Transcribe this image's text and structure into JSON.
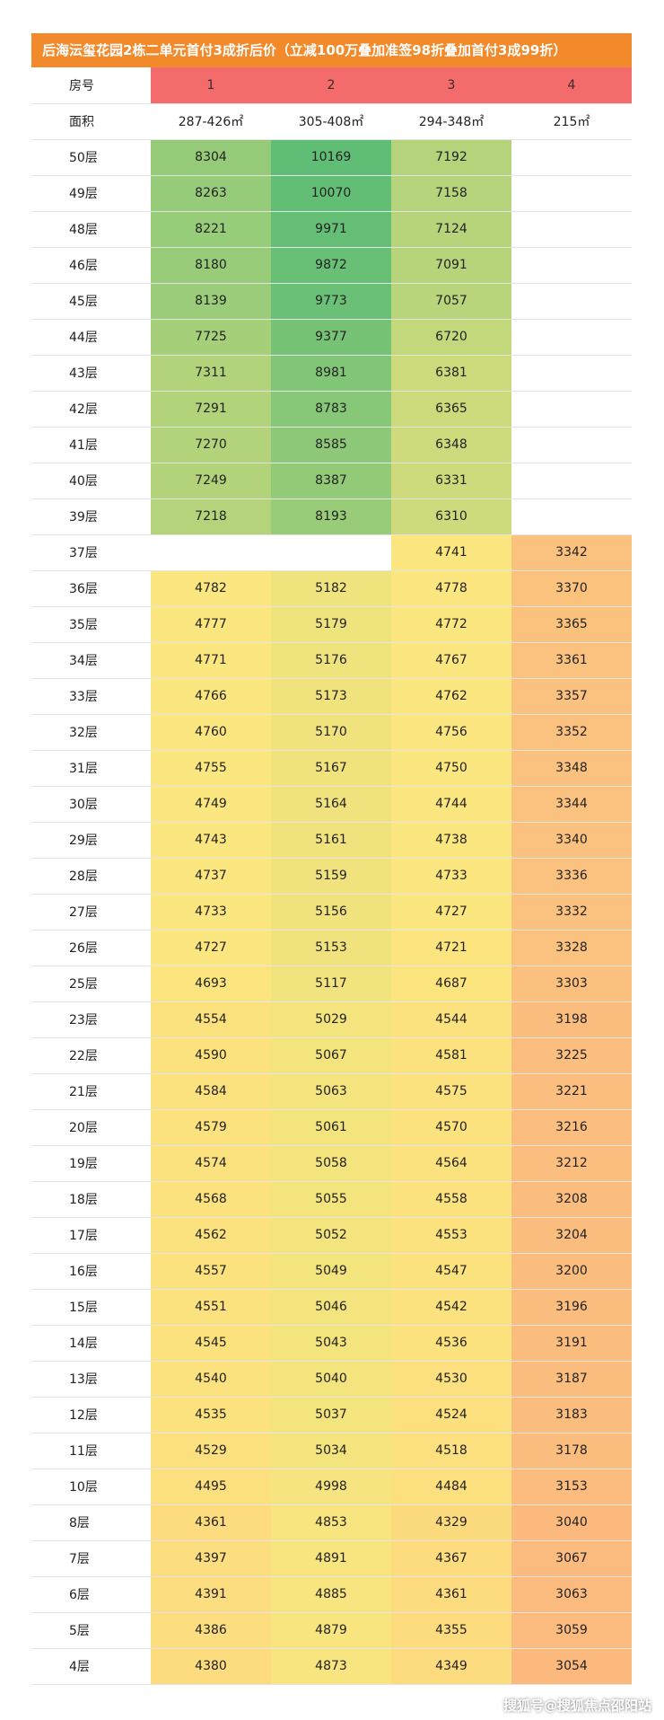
{
  "title": "后海沄玺花园2栋二单元首付3成折后价（立减100万叠加准签98折叠加首付3成99折）",
  "header": {
    "label": "房号",
    "units": [
      "1",
      "2",
      "3",
      "4"
    ]
  },
  "area": {
    "label": "面积",
    "values": [
      "287-426㎡",
      "305-408㎡",
      "294-348㎡",
      "215㎡"
    ]
  },
  "rows": [
    {
      "floor": "50层",
      "prices": [
        "8304",
        "10169",
        "7192",
        ""
      ]
    },
    {
      "floor": "49层",
      "prices": [
        "8263",
        "10070",
        "7158",
        ""
      ]
    },
    {
      "floor": "48层",
      "prices": [
        "8221",
        "9971",
        "7124",
        ""
      ]
    },
    {
      "floor": "46层",
      "prices": [
        "8180",
        "9872",
        "7091",
        ""
      ]
    },
    {
      "floor": "45层",
      "prices": [
        "8139",
        "9773",
        "7057",
        ""
      ]
    },
    {
      "floor": "44层",
      "prices": [
        "7725",
        "9377",
        "6720",
        ""
      ]
    },
    {
      "floor": "43层",
      "prices": [
        "7311",
        "8981",
        "6381",
        ""
      ]
    },
    {
      "floor": "42层",
      "prices": [
        "7291",
        "8783",
        "6365",
        ""
      ]
    },
    {
      "floor": "41层",
      "prices": [
        "7270",
        "8585",
        "6348",
        ""
      ]
    },
    {
      "floor": "40层",
      "prices": [
        "7249",
        "8387",
        "6331",
        ""
      ]
    },
    {
      "floor": "39层",
      "prices": [
        "7218",
        "8193",
        "6310",
        ""
      ]
    },
    {
      "floor": "37层",
      "prices": [
        "",
        "",
        "4741",
        "3342"
      ]
    },
    {
      "floor": "36层",
      "prices": [
        "4782",
        "5182",
        "4778",
        "3370"
      ]
    },
    {
      "floor": "35层",
      "prices": [
        "4777",
        "5179",
        "4772",
        "3365"
      ]
    },
    {
      "floor": "34层",
      "prices": [
        "4771",
        "5176",
        "4767",
        "3361"
      ]
    },
    {
      "floor": "33层",
      "prices": [
        "4766",
        "5173",
        "4762",
        "3357"
      ]
    },
    {
      "floor": "32层",
      "prices": [
        "4760",
        "5170",
        "4756",
        "3352"
      ]
    },
    {
      "floor": "31层",
      "prices": [
        "4755",
        "5167",
        "4750",
        "3348"
      ]
    },
    {
      "floor": "30层",
      "prices": [
        "4749",
        "5164",
        "4744",
        "3344"
      ]
    },
    {
      "floor": "29层",
      "prices": [
        "4743",
        "5161",
        "4738",
        "3340"
      ]
    },
    {
      "floor": "28层",
      "prices": [
        "4737",
        "5159",
        "4733",
        "3336"
      ]
    },
    {
      "floor": "27层",
      "prices": [
        "4733",
        "5156",
        "4727",
        "3332"
      ]
    },
    {
      "floor": "26层",
      "prices": [
        "4727",
        "5153",
        "4721",
        "3328"
      ]
    },
    {
      "floor": "25层",
      "prices": [
        "4693",
        "5117",
        "4687",
        "3303"
      ]
    },
    {
      "floor": "23层",
      "prices": [
        "4554",
        "5029",
        "4544",
        "3198"
      ]
    },
    {
      "floor": "22层",
      "prices": [
        "4590",
        "5067",
        "4581",
        "3225"
      ]
    },
    {
      "floor": "21层",
      "prices": [
        "4584",
        "5063",
        "4575",
        "3221"
      ]
    },
    {
      "floor": "20层",
      "prices": [
        "4579",
        "5061",
        "4570",
        "3216"
      ]
    },
    {
      "floor": "19层",
      "prices": [
        "4574",
        "5058",
        "4564",
        "3212"
      ]
    },
    {
      "floor": "18层",
      "prices": [
        "4568",
        "5055",
        "4558",
        "3208"
      ]
    },
    {
      "floor": "17层",
      "prices": [
        "4562",
        "5052",
        "4553",
        "3204"
      ]
    },
    {
      "floor": "16层",
      "prices": [
        "4557",
        "5049",
        "4547",
        "3200"
      ]
    },
    {
      "floor": "15层",
      "prices": [
        "4551",
        "5046",
        "4542",
        "3196"
      ]
    },
    {
      "floor": "14层",
      "prices": [
        "4545",
        "5043",
        "4536",
        "3191"
      ]
    },
    {
      "floor": "13层",
      "prices": [
        "4540",
        "5040",
        "4530",
        "3187"
      ]
    },
    {
      "floor": "12层",
      "prices": [
        "4535",
        "5037",
        "4524",
        "3183"
      ]
    },
    {
      "floor": "11层",
      "prices": [
        "4529",
        "5034",
        "4518",
        "3178"
      ]
    },
    {
      "floor": "10层",
      "prices": [
        "4495",
        "4998",
        "4484",
        "3153"
      ]
    },
    {
      "floor": "8层",
      "prices": [
        "4361",
        "4853",
        "4329",
        "3040"
      ]
    },
    {
      "floor": "7层",
      "prices": [
        "4397",
        "4891",
        "4367",
        "3067"
      ]
    },
    {
      "floor": "6层",
      "prices": [
        "4391",
        "4885",
        "4361",
        "3063"
      ]
    },
    {
      "floor": "5层",
      "prices": [
        "4386",
        "4879",
        "4355",
        "3059"
      ]
    },
    {
      "floor": "4层",
      "prices": [
        "4380",
        "4873",
        "4349",
        "3054"
      ]
    }
  ],
  "colors": {
    "title_bg": "#f2892b",
    "header_bg": "#f46b6b",
    "scale_low": "#fbb97e",
    "scale_mid": "#fce67f",
    "scale_high": "#5fbd75"
  },
  "footer": {
    "watermark": "搜狐号@搜狐焦点邵阳站"
  }
}
